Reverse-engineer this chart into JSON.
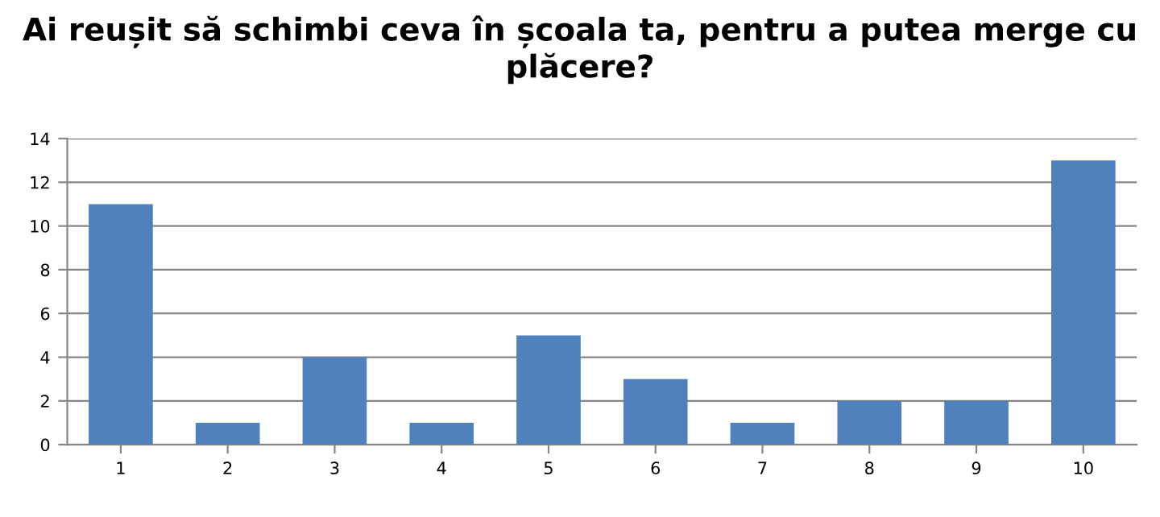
{
  "chart_data": {
    "type": "bar",
    "title": "Ai reușit să schimbi ceva în școala ta, pentru a putea merge cu plăcere?",
    "categories": [
      "1",
      "2",
      "3",
      "4",
      "5",
      "6",
      "7",
      "8",
      "9",
      "10"
    ],
    "values": [
      11,
      1,
      4,
      1,
      5,
      3,
      1,
      2,
      2,
      13
    ],
    "color": "#4f81bd",
    "ylim": [
      0,
      14
    ],
    "yticks": [
      0,
      2,
      4,
      6,
      8,
      10,
      12,
      14
    ],
    "grid": "y"
  }
}
